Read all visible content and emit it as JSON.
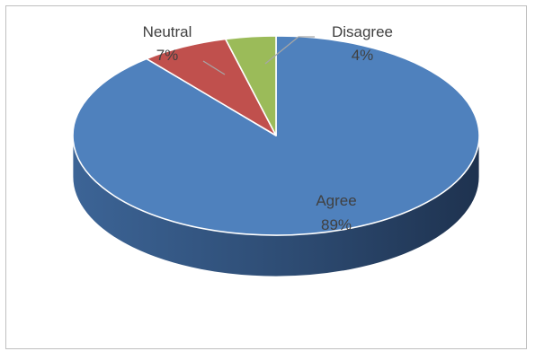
{
  "chart_data": {
    "type": "pie",
    "style": "3d",
    "title": "",
    "slices": [
      {
        "label": "Agree",
        "value": 89,
        "value_label": "89%",
        "color": "#4f81bd",
        "side_color": "#2d4b72"
      },
      {
        "label": "Neutral",
        "value": 7,
        "value_label": "7%",
        "color": "#c0504d",
        "side_color": "#7e302e"
      },
      {
        "label": "Disagree",
        "value": 4,
        "value_label": "4%",
        "color": "#9bbb59",
        "side_color": "#5f7a30"
      }
    ],
    "label_color": "#404040",
    "legend": "none"
  }
}
